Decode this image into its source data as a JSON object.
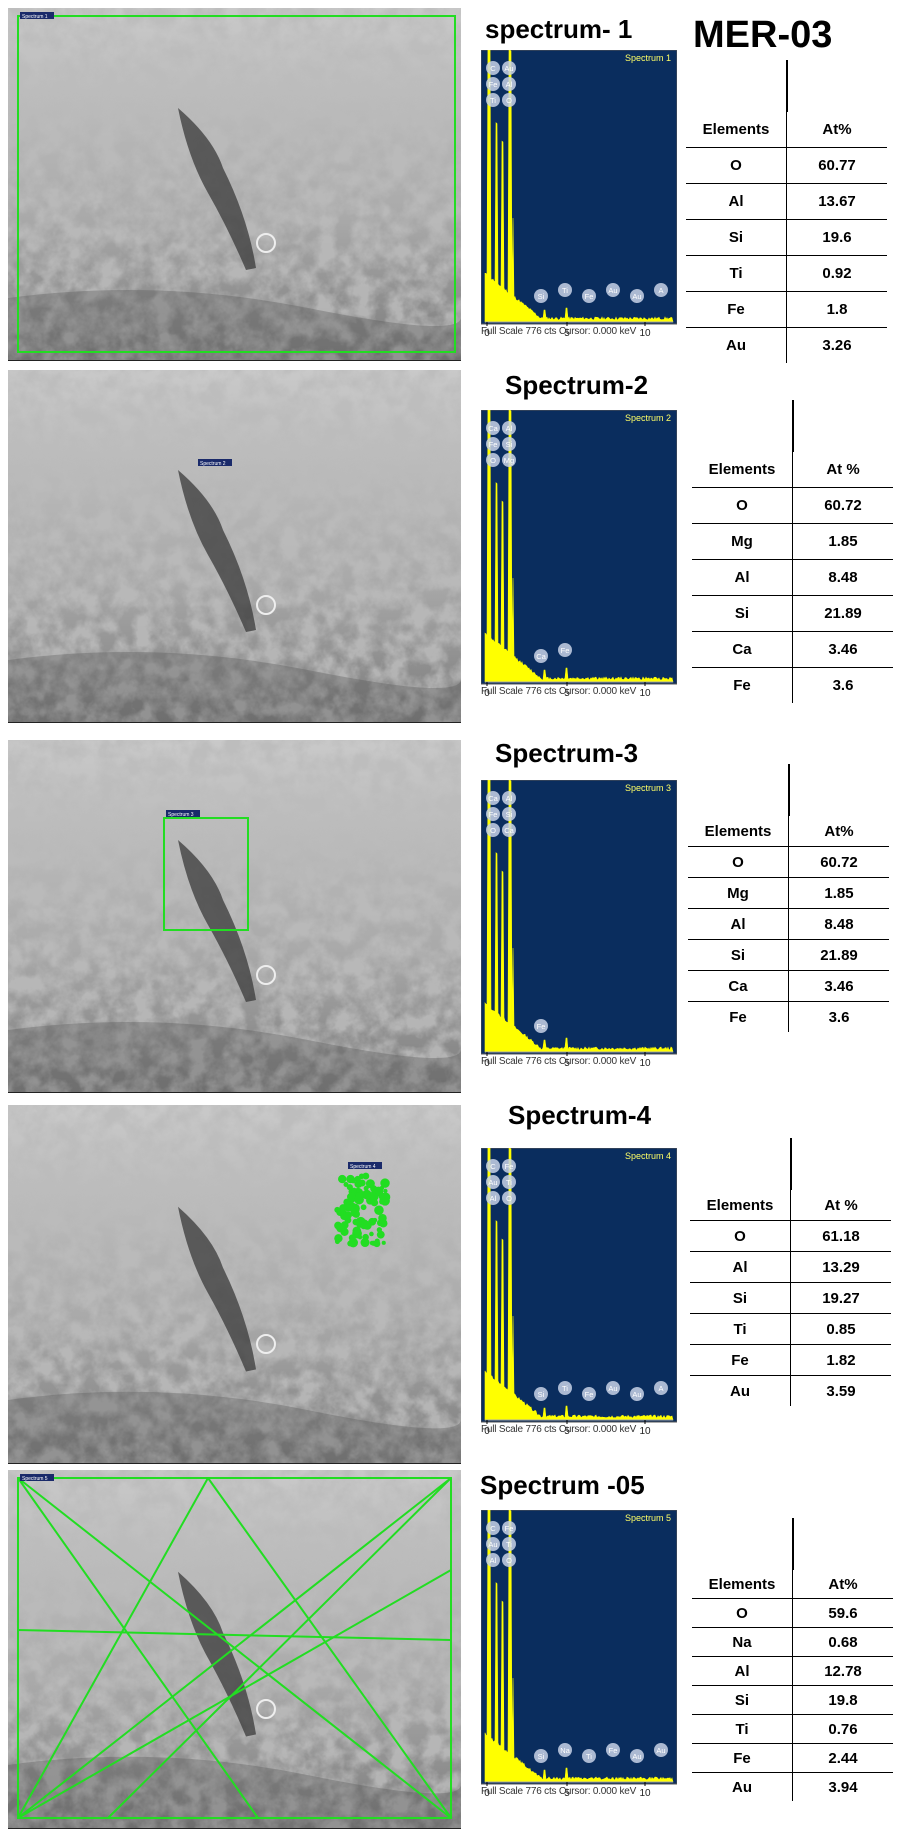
{
  "main_title": "MER-03",
  "spectrum_footer": "Full Scale 776 cts Cursor: 0.000   keV",
  "axis_ticks": [
    "0",
    "5",
    "10"
  ],
  "panels": [
    {
      "title": "spectrum- 1",
      "chart_label": "Spectrum 1",
      "sem_tag": "Spectrum 1",
      "headers": [
        "Elements",
        "At%"
      ],
      "rows": [
        [
          "O",
          "60.77"
        ],
        [
          "Al",
          "13.67"
        ],
        [
          "Si",
          "19.6"
        ],
        [
          "Ti",
          "0.92"
        ],
        [
          "Fe",
          "1.8"
        ],
        [
          "Au",
          "3.26"
        ]
      ],
      "peak_labels": [
        "C",
        "Au",
        "Fe",
        "Al",
        "Ti",
        "O",
        "Si",
        "Ti",
        "Fe",
        "Au",
        "Au",
        "A"
      ]
    },
    {
      "title": "Spectrum-2",
      "chart_label": "Spectrum 2",
      "sem_tag": "Spectrum 2",
      "headers": [
        "Elements",
        "At %"
      ],
      "rows": [
        [
          "O",
          "60.72"
        ],
        [
          "Mg",
          "1.85"
        ],
        [
          "Al",
          "8.48"
        ],
        [
          "Si",
          "21.89"
        ],
        [
          "Ca",
          "3.46"
        ],
        [
          "Fe",
          "3.6"
        ]
      ],
      "peak_labels": [
        "Ca",
        "Al",
        "Fe",
        "Si",
        "O",
        "Mg",
        "Ca",
        "Fe"
      ]
    },
    {
      "title": "Spectrum-3",
      "chart_label": "Spectrum 3",
      "sem_tag": "Spectrum 3",
      "headers": [
        "Elements",
        "At%"
      ],
      "rows": [
        [
          "O",
          "60.72"
        ],
        [
          "Mg",
          "1.85"
        ],
        [
          "Al",
          "8.48"
        ],
        [
          "Si",
          "21.89"
        ],
        [
          "Ca",
          "3.46"
        ],
        [
          "Fe",
          "3.6"
        ]
      ],
      "peak_labels": [
        "Ca",
        "Al",
        "Fe",
        "Si",
        "O",
        "Ca",
        "Fe"
      ]
    },
    {
      "title": "Spectrum-4",
      "chart_label": "Spectrum 4",
      "sem_tag": "Spectrum 4",
      "headers": [
        "Elements",
        "At %"
      ],
      "rows": [
        [
          "O",
          "61.18"
        ],
        [
          "Al",
          "13.29"
        ],
        [
          "Si",
          "19.27"
        ],
        [
          "Ti",
          "0.85"
        ],
        [
          "Fe",
          "1.82"
        ],
        [
          "Au",
          "3.59"
        ]
      ],
      "peak_labels": [
        "C",
        "Fe",
        "Au",
        "Ti",
        "Al",
        "O",
        "Si",
        "Ti",
        "Fe",
        "Au",
        "Au",
        "A"
      ]
    },
    {
      "title": "Spectrum -05",
      "chart_label": "Spectrum 5",
      "sem_tag": "Spectrum 5",
      "headers": [
        "Elements",
        "At%"
      ],
      "rows": [
        [
          "O",
          "59.6"
        ],
        [
          "Na",
          "0.68"
        ],
        [
          "Al",
          "12.78"
        ],
        [
          "Si",
          "19.8"
        ],
        [
          "Ti",
          "0.76"
        ],
        [
          "Fe",
          "2.44"
        ],
        [
          "Au",
          "3.94"
        ]
      ],
      "peak_labels": [
        "C",
        "Fe",
        "Au",
        "Ti",
        "Al",
        "O",
        "Si",
        "Na",
        "Ti",
        "Fe",
        "Au",
        "Au",
        "A"
      ]
    }
  ],
  "colors": {
    "spectrum_bg": "#0a2d5e",
    "peak": "#ffff00",
    "marker": "#22dd22",
    "badge": "#c8d2e6"
  }
}
